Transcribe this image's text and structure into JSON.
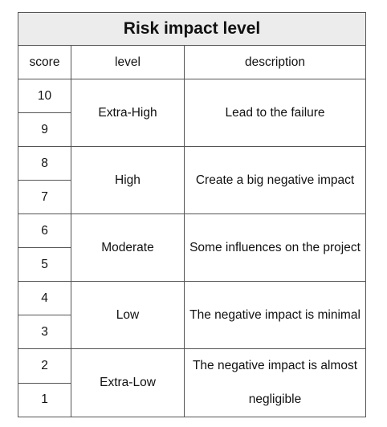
{
  "title": "Risk impact level",
  "headers": {
    "score": "score",
    "level": "level",
    "description": "description"
  },
  "rows": [
    {
      "scores": [
        "10",
        "9"
      ],
      "level": "Extra-High",
      "description": "Lead to the failure"
    },
    {
      "scores": [
        "8",
        "7"
      ],
      "level": "High",
      "description": "Create a big negative impact"
    },
    {
      "scores": [
        "6",
        "5"
      ],
      "level": "Moderate",
      "description": "Some influences on the project"
    },
    {
      "scores": [
        "4",
        "3"
      ],
      "level": "Low",
      "description": "The negative impact is minimal"
    },
    {
      "scores": [
        "2",
        "1"
      ],
      "level": "Extra-Low",
      "description": "The negative impact is almost negligible"
    }
  ]
}
